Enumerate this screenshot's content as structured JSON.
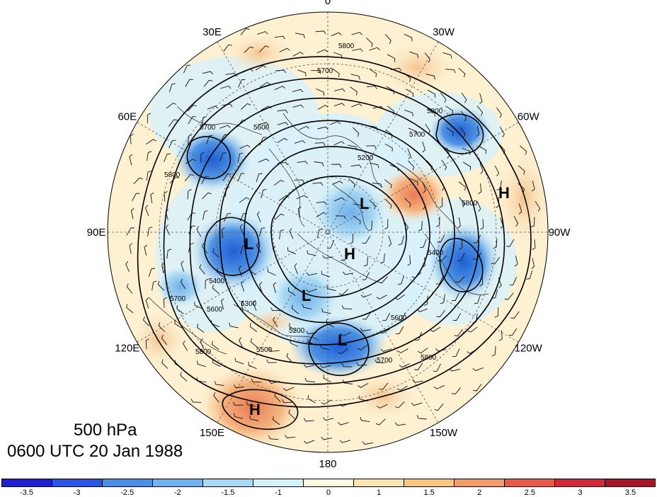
{
  "map": {
    "projection": "north-polar-stereographic",
    "level": "500 hPa",
    "valid_time": "0600 UTC 20 Jan 1988",
    "longitude_labels": [
      {
        "text": "0",
        "lon": 0
      },
      {
        "text": "30W",
        "lon": -30
      },
      {
        "text": "60W",
        "lon": -60
      },
      {
        "text": "90W",
        "lon": -90
      },
      {
        "text": "120W",
        "lon": -120
      },
      {
        "text": "150W",
        "lon": -150
      },
      {
        "text": "180",
        "lon": 180
      },
      {
        "text": "150E",
        "lon": 150
      },
      {
        "text": "120E",
        "lon": 120
      },
      {
        "text": "90E",
        "lon": 90
      },
      {
        "text": "60E",
        "lon": 60
      },
      {
        "text": "30E",
        "lon": 30
      }
    ],
    "contour_labels": [
      "5800",
      "5700",
      "5600",
      "5500",
      "5400",
      "5300",
      "5200"
    ],
    "pressure_centers": [
      {
        "type": "H",
        "name": "high-east-us"
      },
      {
        "type": "L",
        "name": "low-central-siberia"
      },
      {
        "type": "H",
        "name": "high-north-pole"
      },
      {
        "type": "L",
        "name": "low-arctic-north"
      },
      {
        "type": "L",
        "name": "low-east-siberia"
      },
      {
        "type": "L",
        "name": "low-pacific"
      },
      {
        "type": "H",
        "name": "high-china"
      }
    ],
    "anomaly_colors": {
      "strong_negative": "#2f6fd8",
      "negative": "#7fb6ea",
      "weak_negative": "#cdeefa",
      "weak_positive": "#fdf3d3",
      "positive": "#f7cf99",
      "strong_positive": "#ef8a5f"
    }
  },
  "title": {
    "level": "500 hPa",
    "time": "0600 UTC 20 Jan 1988"
  },
  "colorbar": {
    "colors": [
      "#1f1fd0",
      "#2d55e8",
      "#4a8ee8",
      "#6fb2ee",
      "#a7d9f5",
      "#d3f2fb",
      "#fffadc",
      "#fbe6b3",
      "#f8c883",
      "#f39c6b",
      "#ea5a48",
      "#d32a3a",
      "#a81526"
    ],
    "tick_labels": [
      "-3.5",
      "-3",
      "-2.5",
      "-2",
      "-1.5",
      "-1",
      "0",
      "1",
      "1.5",
      "2",
      "2.5",
      "3",
      "3.5"
    ]
  }
}
